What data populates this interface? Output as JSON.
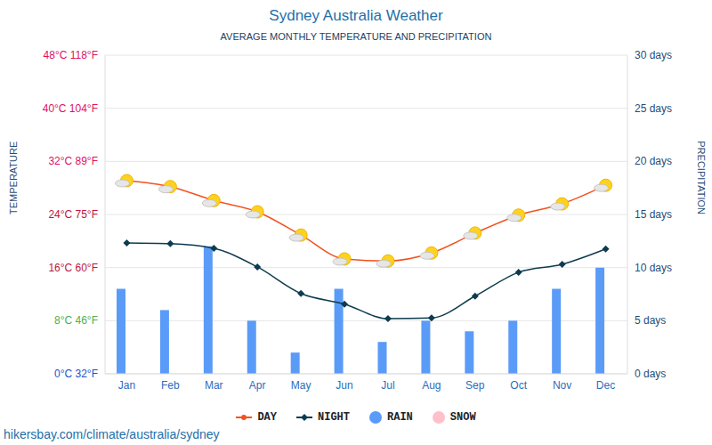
{
  "chart_data": {
    "type": "combo",
    "title": "Sydney Australia Weather",
    "subtitle": "AVERAGE MONTHLY TEMPERATURE AND PRECIPITATION",
    "ylabel": "TEMPERATURE",
    "y2label": "PRECIPITATION",
    "source": "hikersbay.com/climate/australia/sydney",
    "categories": [
      "Jan",
      "Feb",
      "Mar",
      "Apr",
      "May",
      "Jun",
      "Jul",
      "Aug",
      "Sep",
      "Oct",
      "Nov",
      "Dec"
    ],
    "series": [
      {
        "name": "DAY",
        "type": "line",
        "color": "#f4511e",
        "marker": "sun",
        "values": [
          29.1,
          28.2,
          26.1,
          24.4,
          20.9,
          17.3,
          17.0,
          18.2,
          21.2,
          23.9,
          25.6,
          28.4
        ]
      },
      {
        "name": "NIGHT",
        "type": "line",
        "color": "#0d3b4f",
        "marker": "diamond",
        "values": [
          19.7,
          19.6,
          18.9,
          16.1,
          12.1,
          10.5,
          8.3,
          8.4,
          11.7,
          15.3,
          16.5,
          18.8
        ]
      },
      {
        "name": "RAIN",
        "type": "bar",
        "axis": "y2",
        "color": "#5b9bf8",
        "values": [
          8,
          6,
          12,
          5,
          2,
          8,
          3,
          5,
          4,
          5,
          8,
          10
        ]
      },
      {
        "name": "SNOW",
        "type": "bar",
        "axis": "y2",
        "color": "#ffc0cb",
        "values": [
          0,
          0,
          0,
          0,
          0,
          0,
          0,
          0,
          0,
          0,
          0,
          0
        ]
      }
    ],
    "ylim": [
      0,
      48
    ],
    "yticks": [
      {
        "value": 0,
        "label": "0°C 32°F"
      },
      {
        "value": 8,
        "label": "8°C 46°F"
      },
      {
        "value": 16,
        "label": "16°C 60°F"
      },
      {
        "value": 24,
        "label": "24°C 75°F"
      },
      {
        "value": 32,
        "label": "32°C 89°F"
      },
      {
        "value": 40,
        "label": "40°C 104°F"
      },
      {
        "value": 48,
        "label": "48°C 118°F"
      }
    ],
    "y2lim": [
      0,
      30
    ],
    "y2ticks": [
      {
        "value": 0,
        "label": "0 days"
      },
      {
        "value": 5,
        "label": "5 days"
      },
      {
        "value": 10,
        "label": "10 days"
      },
      {
        "value": 15,
        "label": "15 days"
      },
      {
        "value": 20,
        "label": "20 days"
      },
      {
        "value": 25,
        "label": "25 days"
      },
      {
        "value": 30,
        "label": "30 days"
      }
    ],
    "grid": true,
    "legend": "bottom"
  }
}
